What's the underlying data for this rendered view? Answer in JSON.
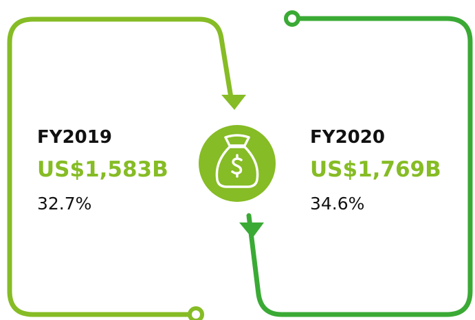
{
  "panels": [
    {
      "period": "FY2019",
      "amount": "US$1,583B",
      "share": "32.7%"
    },
    {
      "period": "FY2020",
      "amount": "US$1,769B",
      "share": "34.6%"
    }
  ]
}
